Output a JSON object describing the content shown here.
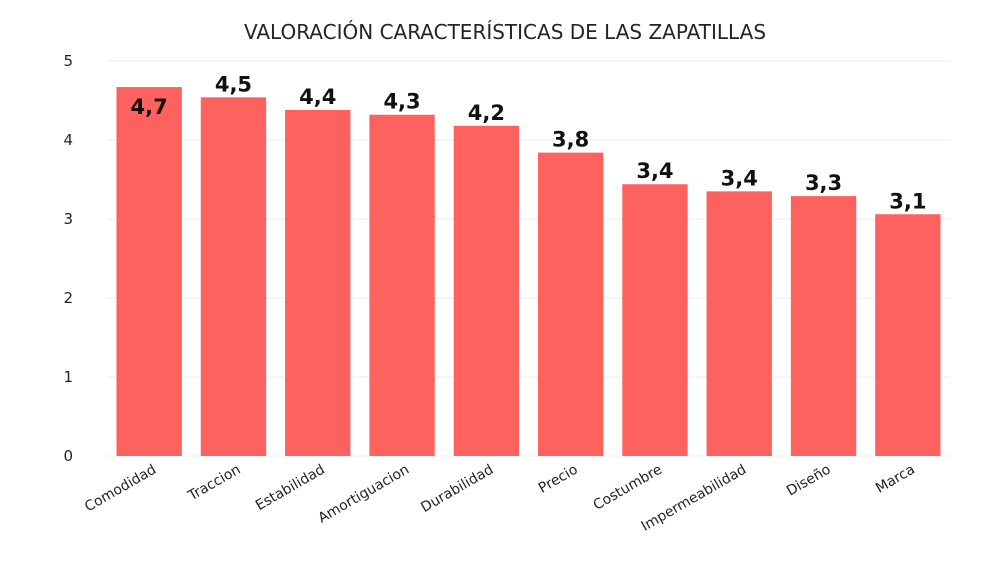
{
  "chart_data": {
    "type": "bar",
    "title": "VALORACIÓN CARACTERÍSTICAS DE LAS ZAPATILLAS",
    "xlabel": "",
    "ylabel": "",
    "ylim": [
      0,
      5
    ],
    "yticks": [
      0,
      1,
      2,
      3,
      4,
      5
    ],
    "grid": true,
    "bar_color": "#FD625E",
    "categories": [
      "Comodidad",
      "Traccion",
      "Estabilidad",
      "Amortiguacion",
      "Durabilidad",
      "Precio",
      "Costumbre",
      "Impermeabilidad",
      "Diseño",
      "Marca"
    ],
    "values": [
      4.67,
      4.54,
      4.38,
      4.32,
      4.18,
      3.84,
      3.44,
      3.35,
      3.29,
      3.06
    ],
    "data_labels": [
      "4,7",
      "4,5",
      "4,4",
      "4,3",
      "4,2",
      "3,8",
      "3,4",
      "3,4",
      "3,3",
      "3,1"
    ]
  }
}
